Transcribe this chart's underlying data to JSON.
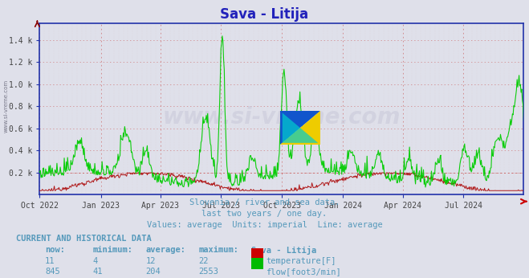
{
  "title": "Sava - Litija",
  "title_color": "#2222bb",
  "title_fontsize": 12,
  "bg_color": "#dfe0ea",
  "plot_bg_color": "#dfe0ea",
  "y_max": 1550,
  "y_min": 0,
  "y_ticks": [
    200,
    400,
    600,
    800,
    1000,
    1200,
    1400
  ],
  "y_tick_labels": [
    "0.2 k",
    "0.4 k",
    "0.6 k",
    "0.8 k",
    "1.0 k",
    "1.2 k",
    "1.4 k"
  ],
  "x_tick_labels": [
    "Oct 2022",
    "Jan 2023",
    "Apr 2023",
    "Jul 2023",
    "Oct 2023",
    "Jan 2024",
    "Apr 2024",
    "Jul 2024"
  ],
  "x_tick_positions": [
    0,
    92,
    182,
    273,
    365,
    457,
    547,
    638
  ],
  "n_days": 730,
  "temp_color": "#aa0000",
  "flow_color": "#00cc00",
  "grid_h_color": "#cc6666",
  "grid_v_major_color": "#cc6666",
  "grid_v_minor_color": "#ddaaaa",
  "axis_color": "#2233aa",
  "text_color": "#5599bb",
  "subtitle1": "Slovenia / river and sea data.",
  "subtitle2": "last two years / one day.",
  "subtitle3": "Values: average  Units: imperial  Line: average",
  "footer_title": "CURRENT AND HISTORICAL DATA",
  "footer_headers": [
    "now:",
    "minimum:",
    "average:",
    "maximum:",
    "Sava - Litija"
  ],
  "footer_row1": [
    "11",
    "4",
    "12",
    "22"
  ],
  "footer_row1_label": "temperature[F]",
  "footer_row1_color": "#cc0000",
  "footer_row2": [
    "845",
    "41",
    "204",
    "2553"
  ],
  "footer_row2_label": "flow[foot3/min]",
  "footer_row2_color": "#00bb00",
  "watermark_text": "www.si-vreme.com",
  "side_watermark": "www.si-vreme.com"
}
